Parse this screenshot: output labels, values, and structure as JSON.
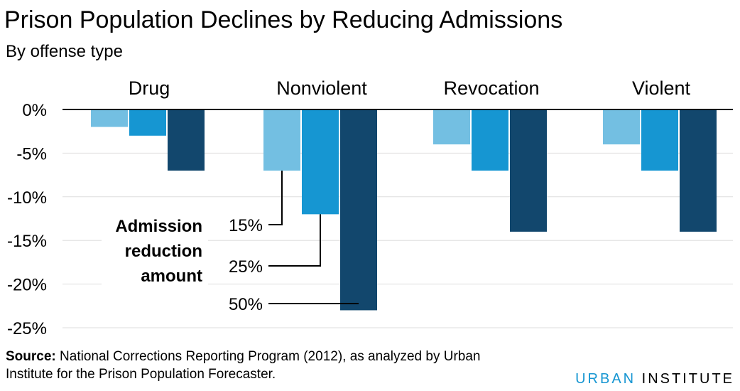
{
  "header": {
    "title": "Prison Population Declines by Reducing Admissions",
    "subtitle": "By offense type"
  },
  "chart_data": {
    "type": "bar",
    "title": "Prison Population Declines by Reducing Admissions",
    "subtitle": "By offense type",
    "categories": [
      "Drug",
      "Nonviolent",
      "Revocation",
      "Violent"
    ],
    "series": [
      {
        "name": "15%",
        "color": "#73bfe2",
        "values": [
          -2,
          -7,
          -4,
          -4
        ]
      },
      {
        "name": "25%",
        "color": "#1696d2",
        "values": [
          -3,
          -12,
          -7,
          -7
        ]
      },
      {
        "name": "50%",
        "color": "#12476d",
        "values": [
          -7,
          -23,
          -14,
          -14
        ]
      }
    ],
    "ylim": [
      -25,
      0
    ],
    "yticks": [
      0,
      -5,
      -10,
      -15,
      -20,
      -25
    ],
    "ytick_labels": [
      "0%",
      "-5%",
      "-10%",
      "-15%",
      "-20%",
      "-25%"
    ],
    "grid": true,
    "legend_title": [
      "Admission",
      "reduction",
      "amount"
    ],
    "legend_placement": "inline-annotation"
  },
  "footer": {
    "source_label": "Source:",
    "source_text": " National Corrections Reporting Program (2012), as analyzed by Urban Institute for the Prison Population Forecaster.",
    "brand_urban": "URBAN",
    "brand_institute": " INSTITUTE"
  }
}
